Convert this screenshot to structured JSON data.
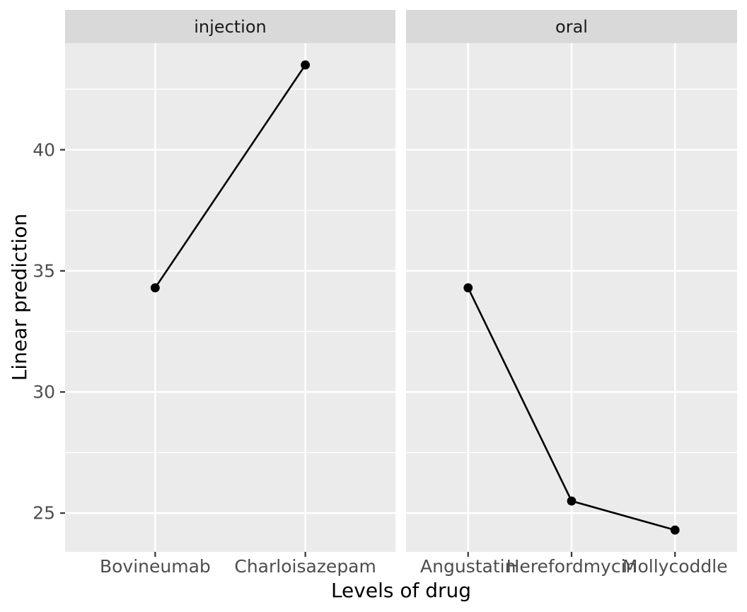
{
  "chart_data": {
    "type": "line",
    "title": "",
    "xlabel": "Levels of drug",
    "ylabel": "Linear prediction",
    "ylim": [
      23.4,
      44.4
    ],
    "y_major_ticks": [
      25,
      30,
      35,
      40
    ],
    "y_minor_ticks": [
      27.5,
      32.5,
      37.5,
      42.5
    ],
    "grid": true,
    "legend_position": "none",
    "marker": "filled-circle",
    "facets": [
      {
        "label": "injection",
        "categories": [
          "Bovineumab",
          "Charloisazepam"
        ],
        "values": [
          34.3,
          43.5
        ]
      },
      {
        "label": "oral",
        "categories": [
          "Angustatin",
          "Herefordmycin",
          "Mollycoddle"
        ],
        "values": [
          34.3,
          25.5,
          24.3
        ]
      }
    ]
  },
  "style": {
    "background": "#FFFFFF",
    "panel_bg": "#EBEBEB",
    "strip_bg": "#D9D9D9",
    "grid_color": "#FFFFFF",
    "series_color": "#000000",
    "tick_mark_color": "#333333",
    "axis_text_color": "#4D4D4D",
    "strip_text_color": "#1A1A1A",
    "axis_title_color": "#000000"
  }
}
